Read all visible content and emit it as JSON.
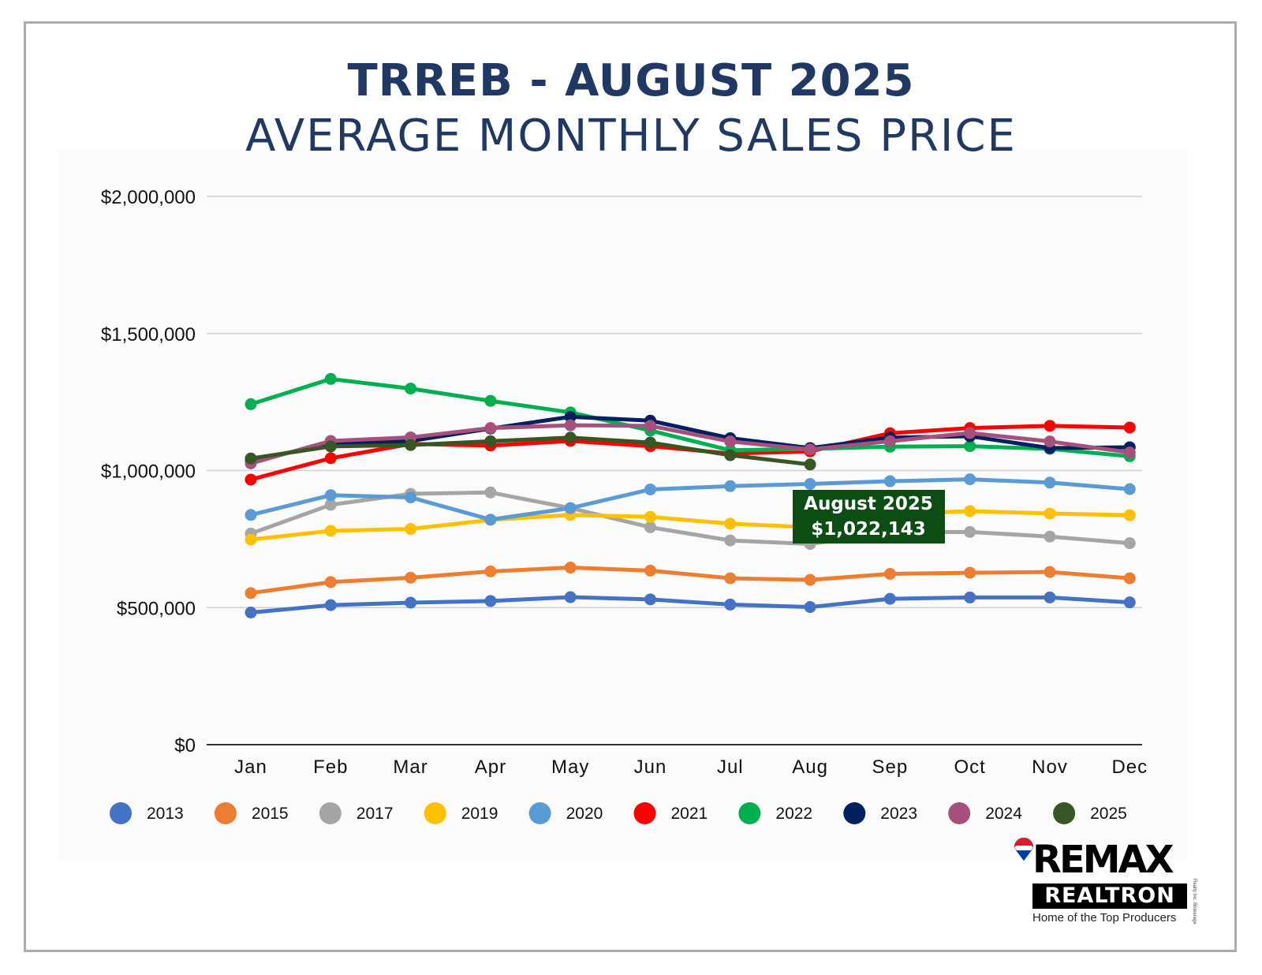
{
  "title": "TRREB - AUGUST 2025",
  "subtitle": "AVERAGE MONTHLY SALES PRICE",
  "chart_data": {
    "type": "line",
    "title": "TRREB - AUGUST 2025",
    "subtitle": "AVERAGE MONTHLY SALES PRICE",
    "xlabel": "",
    "ylabel": "",
    "categories": [
      "Jan",
      "Feb",
      "Mar",
      "Apr",
      "May",
      "Jun",
      "Jul",
      "Aug",
      "Sep",
      "Oct",
      "Nov",
      "Dec"
    ],
    "ylim": [
      0,
      2000000
    ],
    "y_ticks": [
      0,
      500000,
      1000000,
      1500000,
      2000000
    ],
    "y_tick_labels": [
      "$0",
      "$500,000",
      "$1,000,000",
      "$1,500,000",
      "$2,000,000"
    ],
    "grid": true,
    "legend_position": "bottom",
    "series": [
      {
        "name": "2013",
        "color": "#4472c4",
        "values": [
          482000,
          509000,
          518000,
          524000,
          538000,
          530000,
          511000,
          502000,
          532000,
          537000,
          537000,
          519000
        ]
      },
      {
        "name": "2015",
        "color": "#ed7d31",
        "values": [
          553000,
          593000,
          609000,
          632000,
          646000,
          635000,
          607000,
          601000,
          623000,
          627000,
          630000,
          607000
        ]
      },
      {
        "name": "2017",
        "color": "#a5a5a5",
        "values": [
          770000,
          875000,
          915000,
          920000,
          863000,
          793000,
          745000,
          732000,
          775000,
          776000,
          759000,
          735000
        ]
      },
      {
        "name": "2019",
        "color": "#ffc000",
        "values": [
          748000,
          780000,
          787000,
          820000,
          838000,
          831000,
          806000,
          793000,
          840000,
          852000,
          843000,
          837000
        ]
      },
      {
        "name": "2020",
        "color": "#5b9bd5",
        "values": [
          838000,
          910000,
          902000,
          821000,
          863000,
          931000,
          943000,
          951000,
          961000,
          968000,
          956000,
          932000
        ]
      },
      {
        "name": "2021",
        "color": "#ff0000",
        "values": [
          967000,
          1045000,
          1097000,
          1091000,
          1108000,
          1089000,
          1062000,
          1070000,
          1136000,
          1155000,
          1163000,
          1157000
        ]
      },
      {
        "name": "2022",
        "color": "#00b050",
        "values": [
          1242000,
          1334000,
          1299000,
          1254000,
          1212000,
          1146000,
          1074000,
          1079000,
          1087000,
          1089000,
          1079000,
          1052000
        ]
      },
      {
        "name": "2023",
        "color": "#002060",
        "values": [
          1038000,
          1096000,
          1108000,
          1153000,
          1196000,
          1182000,
          1118000,
          1082000,
          1120000,
          1125000,
          1082000,
          1085000
        ]
      },
      {
        "name": "2024",
        "color": "#a5517c",
        "values": [
          1026000,
          1108000,
          1121000,
          1155000,
          1165000,
          1163000,
          1106000,
          1077000,
          1107000,
          1137000,
          1106000,
          1066000
        ]
      },
      {
        "name": "2025",
        "color": "#375623",
        "values": [
          1044000,
          1088000,
          1093000,
          1107000,
          1120000,
          1102000,
          1056000,
          1022143,
          null,
          null,
          null,
          null
        ]
      }
    ],
    "annotation": {
      "line1": "August 2025",
      "line2": "$1,022,143",
      "background": "#0b4d12",
      "text_color": "#ffffff"
    }
  },
  "logo": {
    "brand": "RE/MAX",
    "brand_display": "REMAX",
    "name": "REALTRON",
    "tagline": "Home of the Top Producers",
    "small_text": "Realty Inc. Brokerage",
    "colors": {
      "red": "#dc1c2e",
      "blue": "#003da5",
      "black": "#000000"
    }
  }
}
